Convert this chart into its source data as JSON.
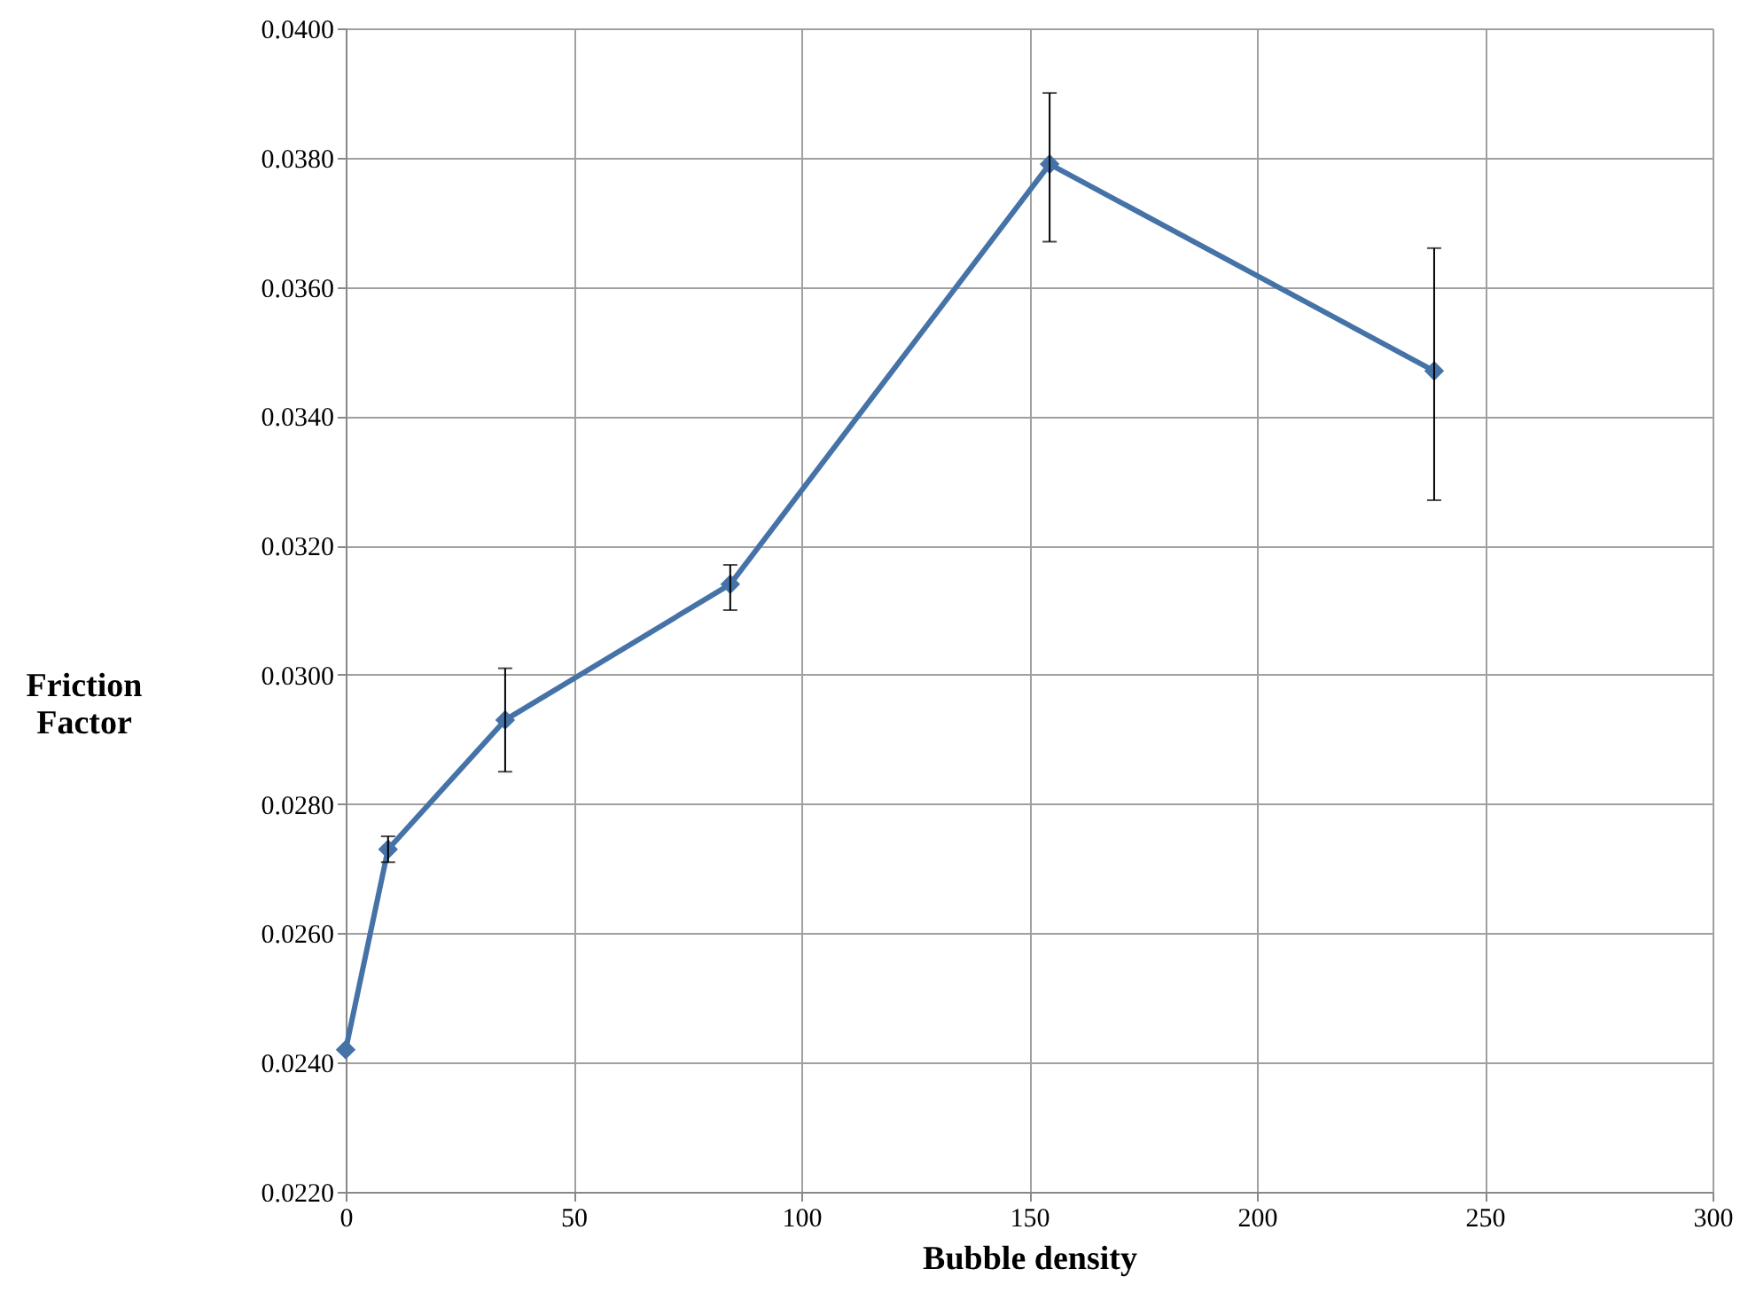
{
  "chart_data": {
    "type": "line",
    "xlabel": "Bubble density",
    "ylabel": "Friction Factor",
    "x": [
      0,
      9.3,
      35,
      84.4,
      154.5,
      238.9
    ],
    "series": [
      {
        "color": "#4572a7",
        "values": [
          0.0242,
          0.0273,
          0.0293,
          0.0314,
          0.0379,
          0.0347
        ],
        "errors": [
          null,
          [
            0.0271,
            0.0275
          ],
          [
            0.0285,
            0.0301
          ],
          [
            0.031,
            0.0317
          ],
          [
            0.0367,
            0.039
          ],
          [
            0.0327,
            0.0366
          ]
        ]
      }
    ],
    "xlim": [
      0,
      300
    ],
    "xticks": [
      0,
      50,
      100,
      150,
      200,
      250,
      300
    ],
    "ylim": [
      0.022,
      0.04
    ],
    "yticks": [
      {
        "value": 0.022,
        "label": "0.0220"
      },
      {
        "value": 0.024,
        "label": "0.0240"
      },
      {
        "value": 0.026,
        "label": "0.0260"
      },
      {
        "value": 0.028,
        "label": "0.0280"
      },
      {
        "value": 0.03,
        "label": "0.0300"
      },
      {
        "value": 0.032,
        "label": "0.0320"
      },
      {
        "value": 0.034,
        "label": "0.0340"
      },
      {
        "value": 0.036,
        "label": "0.0360"
      },
      {
        "value": 0.038,
        "label": "0.0380"
      },
      {
        "value": 0.04,
        "label": "0.0400"
      }
    ],
    "grid": true,
    "marker": "diamond",
    "line_style": "solid"
  }
}
